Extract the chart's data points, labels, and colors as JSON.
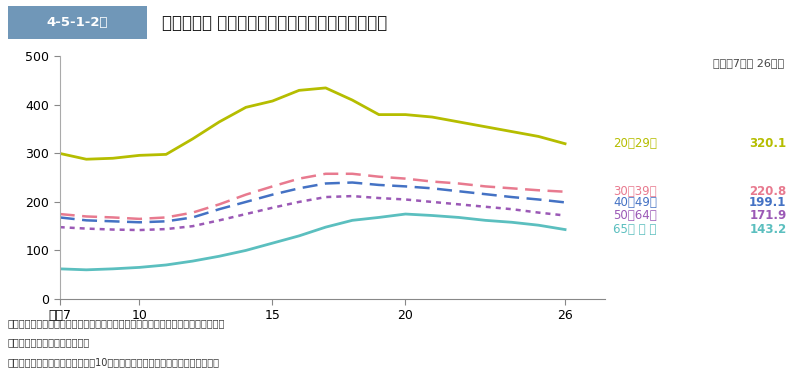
{
  "title": "一般刑法犯 検挙人員の人口比の推移（年齢層別）",
  "subtitle": "（平成7年～ 26年）",
  "header_label": "4-5-1-2図",
  "years": [
    7,
    8,
    9,
    10,
    11,
    12,
    13,
    14,
    15,
    16,
    17,
    18,
    19,
    20,
    21,
    22,
    23,
    24,
    25,
    26
  ],
  "series": [
    {
      "label": "20～29歳",
      "value_label": "320.1",
      "color": "#b5bd00",
      "linestyle": "solid",
      "linewidth": 2.0,
      "data": [
        300,
        288,
        290,
        296,
        298,
        330,
        365,
        395,
        408,
        430,
        435,
        410,
        380,
        380,
        375,
        365,
        355,
        345,
        335,
        320
      ]
    },
    {
      "label": "30～39歳",
      "value_label": "220.8",
      "color": "#e87a8f",
      "linestyle": "dashed",
      "linewidth": 1.8,
      "data": [
        175,
        170,
        168,
        165,
        168,
        178,
        195,
        215,
        232,
        248,
        258,
        258,
        252,
        248,
        242,
        238,
        232,
        228,
        224,
        221
      ]
    },
    {
      "label": "40～49歳",
      "value_label": "199.1",
      "color": "#4472c4",
      "linestyle": "dashed",
      "linewidth": 1.8,
      "data": [
        168,
        162,
        160,
        158,
        160,
        168,
        185,
        200,
        215,
        228,
        238,
        240,
        235,
        232,
        228,
        222,
        216,
        210,
        205,
        199
      ]
    },
    {
      "label": "50～64歳",
      "value_label": "171.9",
      "color": "#9b59b6",
      "linestyle": "dotted",
      "linewidth": 1.8,
      "data": [
        148,
        145,
        143,
        142,
        144,
        150,
        162,
        175,
        188,
        200,
        210,
        212,
        208,
        205,
        200,
        195,
        190,
        185,
        178,
        172
      ]
    },
    {
      "label": "65歳 以 上",
      "value_label": "143.2",
      "color": "#5bbfbf",
      "linestyle": "solid",
      "linewidth": 2.0,
      "data": [
        62,
        60,
        62,
        65,
        70,
        78,
        88,
        100,
        115,
        130,
        148,
        162,
        168,
        175,
        172,
        168,
        162,
        158,
        152,
        143
      ]
    }
  ],
  "xlim": [
    7,
    27.5
  ],
  "ylim": [
    0,
    500
  ],
  "yticks": [
    0,
    100,
    200,
    300,
    400,
    500
  ],
  "xticks": [
    7,
    10,
    15,
    20,
    26
  ],
  "xticklabels": [
    "平成7",
    "10",
    "15",
    "20",
    "26"
  ],
  "notes_line1": "注　１　警察庁の統計，警察庁交通局の資料及び総務省統計局の人口資料による。",
  "notes_line2": "　　２　犯行時の年齢による。",
  "notes_line3": "　　３　「人口比」は，各年齢層10万人当たりの一般刑法犯検挙人員をいう。",
  "bg_color": "#ffffff",
  "header_bg": "#7097b8",
  "header_text_color": "#ffffff",
  "plot_area_color": "#ffffff"
}
